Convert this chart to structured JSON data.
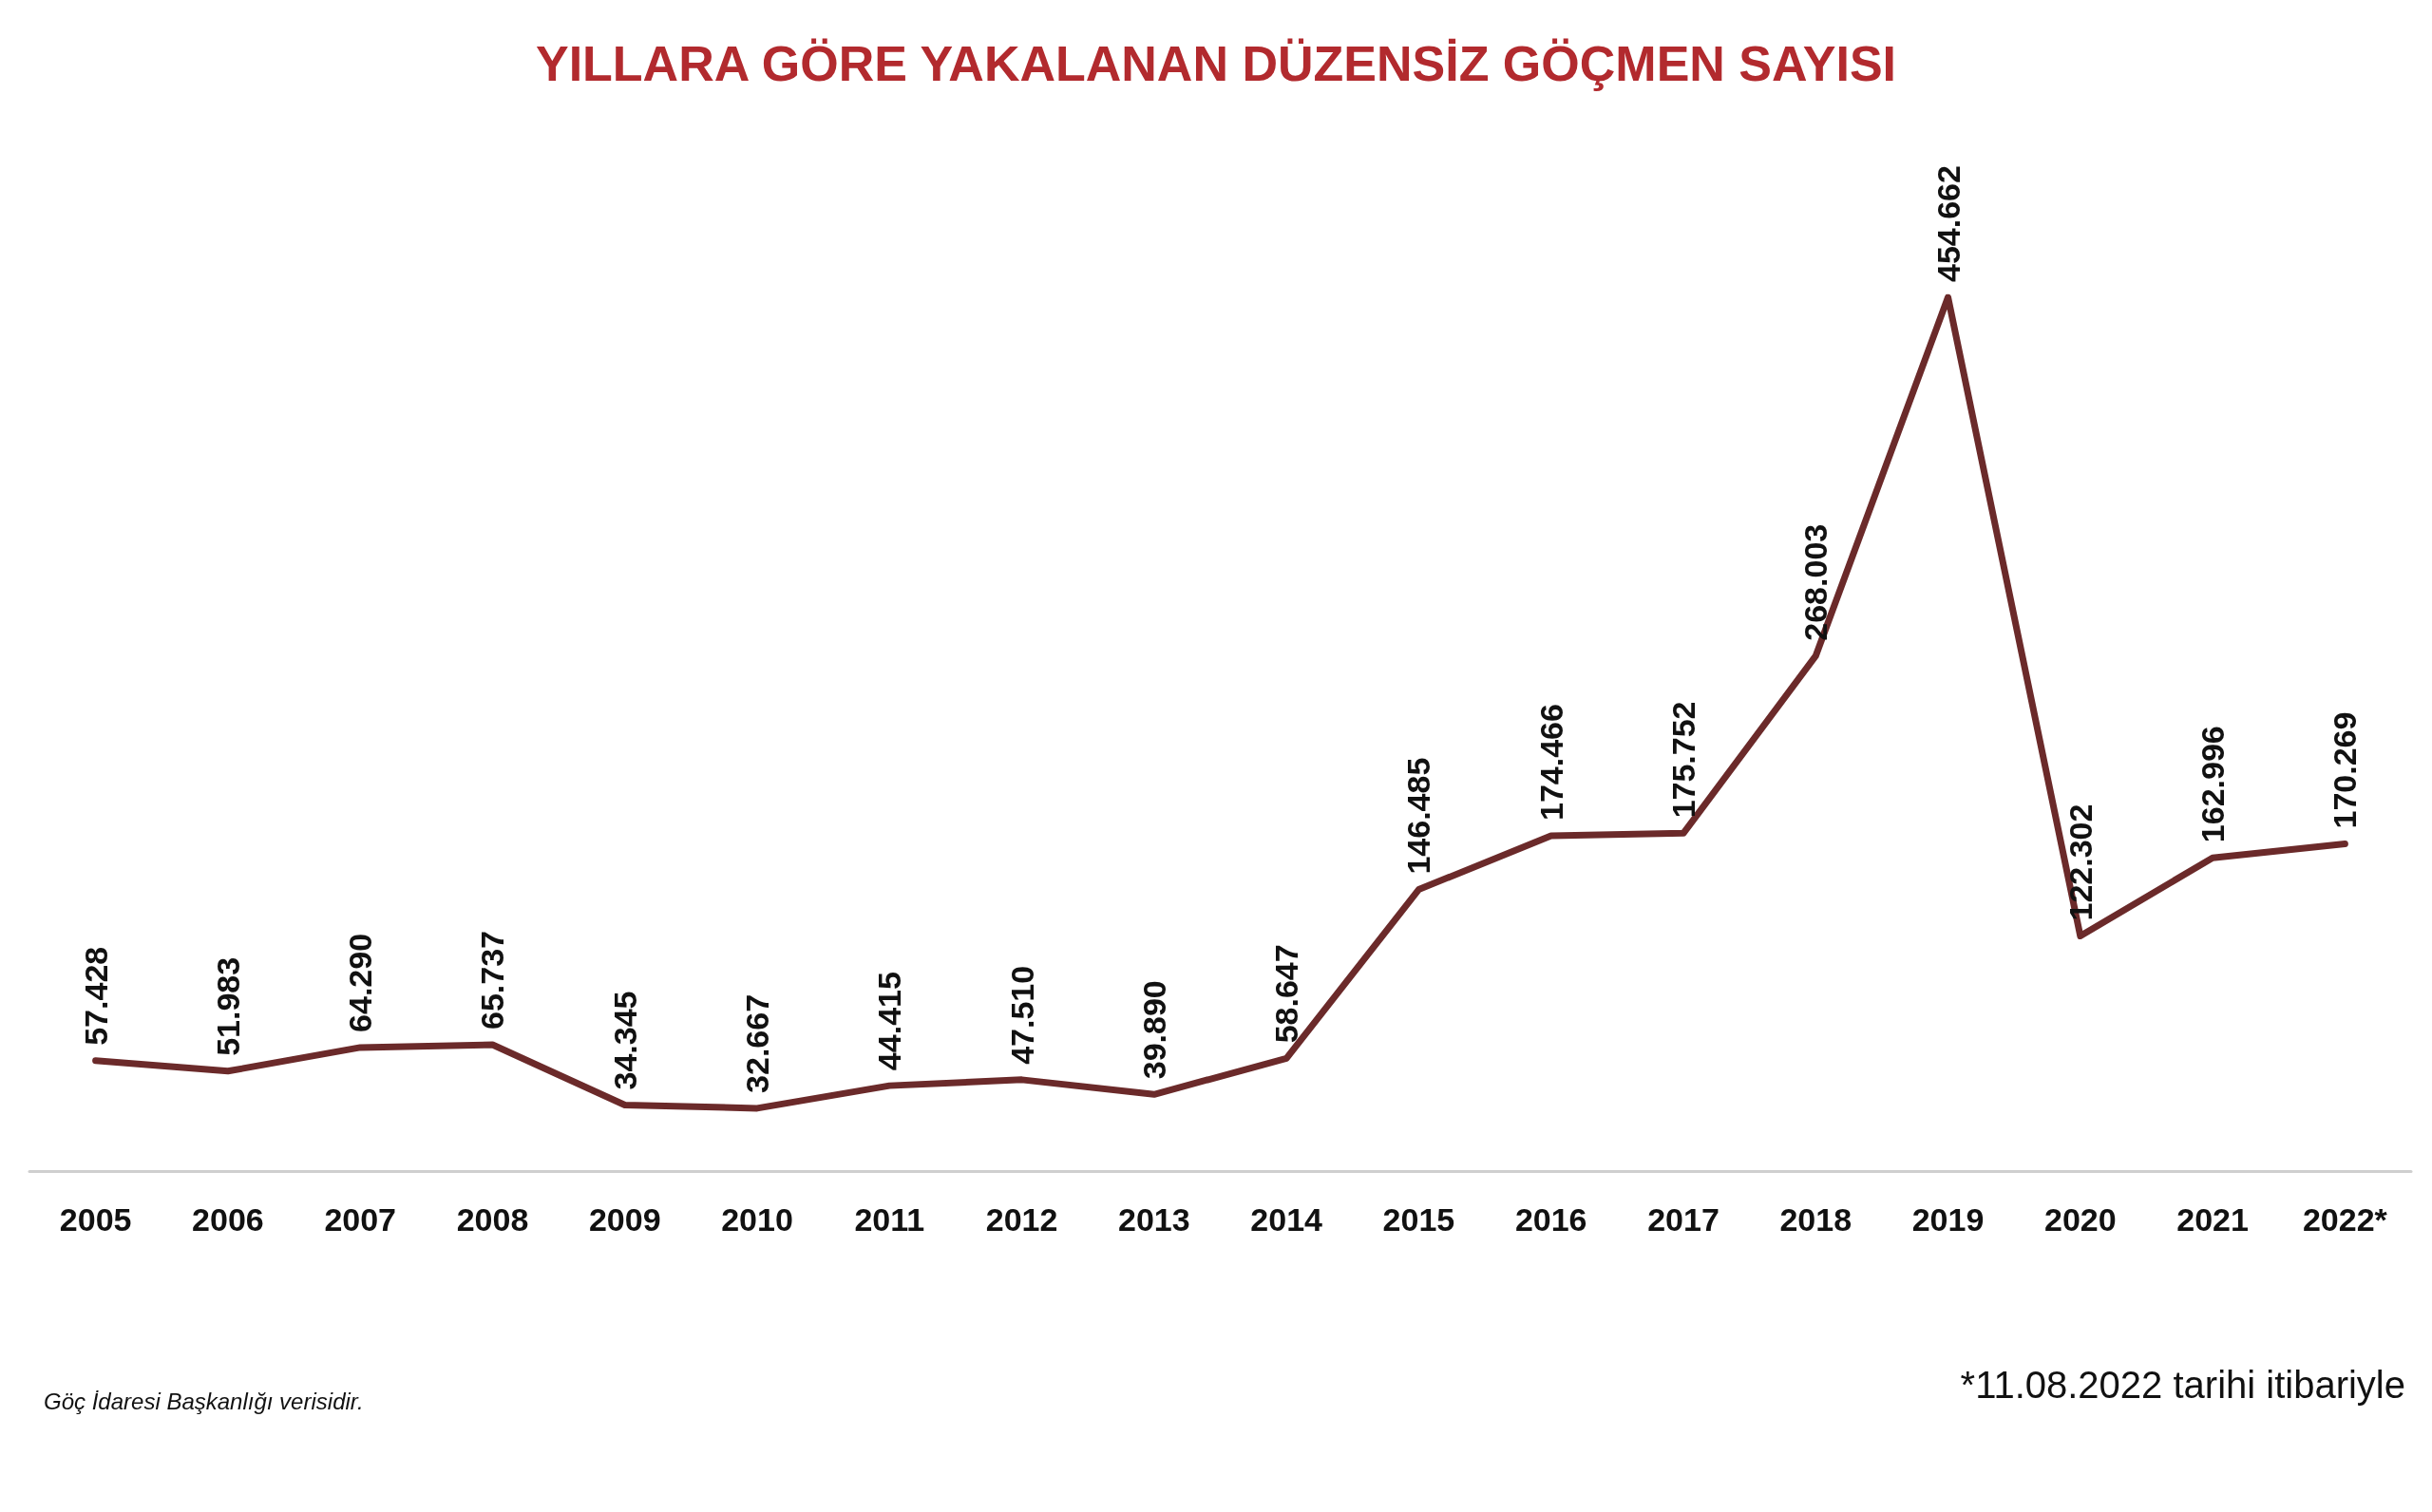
{
  "chart_data": {
    "type": "line",
    "title": "YILLARA GÖRE YAKALANAN DÜZENSİZ GÖÇMEN SAYISI",
    "categories": [
      "2005",
      "2006",
      "2007",
      "2008",
      "2009",
      "2010",
      "2011",
      "2012",
      "2013",
      "2014",
      "2015",
      "2016",
      "2017",
      "2018",
      "2019",
      "2020",
      "2021",
      "2022*"
    ],
    "series": [
      {
        "color": "#6b2a2a",
        "values": [
          57428,
          51983,
          64290,
          65737,
          34345,
          32667,
          44415,
          47510,
          39890,
          58647,
          146485,
          174466,
          175752,
          268003,
          454662,
          122302,
          162996,
          170269
        ],
        "value_labels": [
          "57.428",
          "51.983",
          "64.290",
          "65.737",
          "34.345",
          "32.667",
          "44.415",
          "47.510",
          "39.890",
          "58.647",
          "146.485",
          "174.466",
          "175.752",
          "268.003",
          "454.662",
          "122.302",
          "162.996",
          "170.269"
        ]
      }
    ],
    "marker": "none",
    "line_style": "solid",
    "annotations": [
      "Göç İdaresi Başkanlığı verisidir.",
      "*11.08.2022 tarihi itibariyle"
    ]
  }
}
